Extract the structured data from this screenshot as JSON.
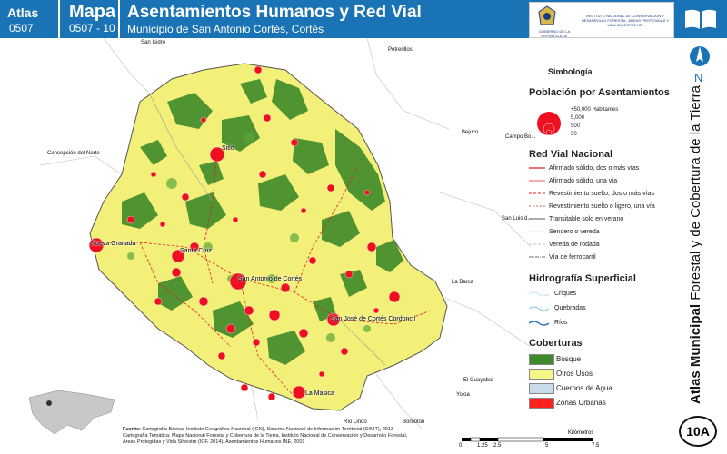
{
  "header": {
    "atlas_label": "Atlas",
    "atlas_number": "0507",
    "map_label": "Mapa",
    "map_number": "0507 - 10",
    "title": "Asentamientos Humanos y Red Vial",
    "subtitle": "Municipio de San Antonio Cortés, Cortés",
    "logo_left_text": "GOBIERNO DE LA REPÚBLICA DE HONDURAS",
    "logo_right_text": "INSTITUTO NACIONAL DE CONSERVACIÓN Y DESARROLLO FORESTAL, ÁREAS PROTEGIDAS Y VIDA SILVESTRE ICF"
  },
  "side": {
    "north_label": "N",
    "vertical_title_bold": "Atlas Municipal",
    "vertical_title_rest": "Forestal y de Cobertura de la Tierra",
    "badge": "10A"
  },
  "map": {
    "neighbors": [
      "San Isidro",
      "Potrerillos",
      "Concepción del Norte",
      "Bejuco",
      "Campo Bo...",
      "San Luis d...",
      "La Barca",
      "El Guayabal",
      "Yojoa",
      "Río Lindo",
      "Borboton"
    ],
    "towns": [
      "Sitio",
      "Nueva Granada",
      "Santa Cruz",
      "San Antonio de Cortés",
      "San José de Cortés Cordoncil",
      "La Masica"
    ]
  },
  "legend": {
    "title": "Simbología",
    "pop_heading": "Población por Asentamientos",
    "pop_items": [
      "+50,000 Habitantes",
      "5,000",
      "500",
      "50"
    ],
    "road_heading": "Red Vial Nacional",
    "road_items": [
      "Afirmado sólido, dos o más vías",
      "Afirmado sólido, una vía",
      "Revestimiento suelto, dos o más vías",
      "Revestimiento suelto o ligero, una vía",
      "Transitable solo en verano",
      "Sendero o vereda",
      "Vereda de rodada",
      "Vía de ferrocarril"
    ],
    "hydro_heading": "Hidrografía Superficial",
    "hydro_items": [
      "Criques",
      "Quebradas",
      "Ríos"
    ],
    "cover_heading": "Coberturas",
    "cover_items": [
      {
        "label": "Bosque",
        "color": "#3f8a2a"
      },
      {
        "label": "Otros Usos",
        "color": "#f5f58a"
      },
      {
        "label": "Cuerpos de Agua",
        "color": "#c9dcec"
      },
      {
        "label": "Zonas Urbanas",
        "color": "#ff2020"
      }
    ]
  },
  "footer": {
    "source_label": "Fuente:",
    "source_lines": [
      "Cartografía Básica: Instituto Geográfico Nacional (IGN), Sistema Nacional de Información Territorial (SINIT), 2013",
      "Cartografía Temática: Mapa Nacional Forestal y Cobertura de la Tierra, Instituto Nacional de Conservación y Desarrollo Forestal,",
      "Áreas Protegidas y Vida Silvestre (ICF, 2014), Asentamientos Humanos INE, 2001"
    ],
    "scale_unit": "Kilómetros",
    "scale_ticks": [
      "0",
      "1.25",
      "2.5",
      "5",
      "7.5"
    ]
  }
}
